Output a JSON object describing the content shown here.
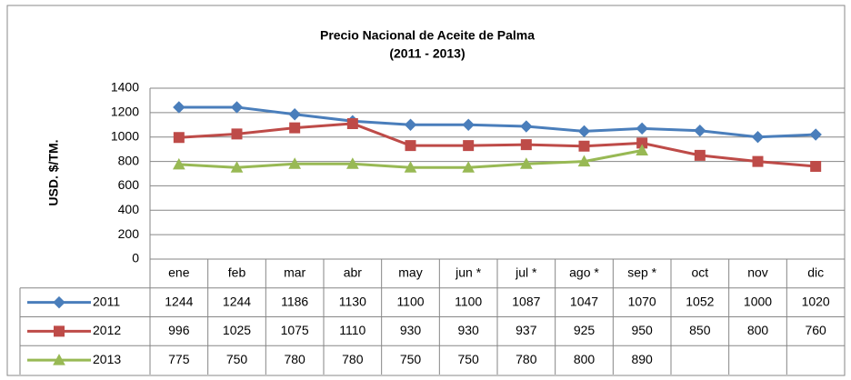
{
  "chart_data": {
    "type": "line",
    "title": "Precio Nacional de Aceite de Palma",
    "subtitle": "(2011 - 2013)",
    "y_label": "USD. $/TM.",
    "categories": [
      "ene",
      "feb",
      "mar",
      "abr",
      "may",
      "jun *",
      "jul *",
      "ago *",
      "sep *",
      "oct",
      "nov",
      "dic"
    ],
    "series": [
      {
        "name": "2011",
        "color": "#4a7ebb",
        "marker": "diamond",
        "values": [
          1244,
          1244,
          1186,
          1130,
          1100,
          1100,
          1087,
          1047,
          1070,
          1052,
          1000,
          1020
        ]
      },
      {
        "name": "2012",
        "color": "#be4b48",
        "marker": "square",
        "values": [
          996,
          1025,
          1075,
          1110,
          930,
          930,
          937,
          925,
          950,
          850,
          800,
          760
        ]
      },
      {
        "name": "2013",
        "color": "#98b954",
        "marker": "triangle",
        "values": [
          775,
          750,
          780,
          780,
          750,
          750,
          780,
          800,
          890,
          null,
          null,
          null
        ]
      }
    ],
    "ylim": [
      0,
      1400
    ],
    "yticks": [
      0,
      200,
      400,
      600,
      800,
      1000,
      1200,
      1400
    ],
    "grid": true,
    "legend": "table"
  }
}
